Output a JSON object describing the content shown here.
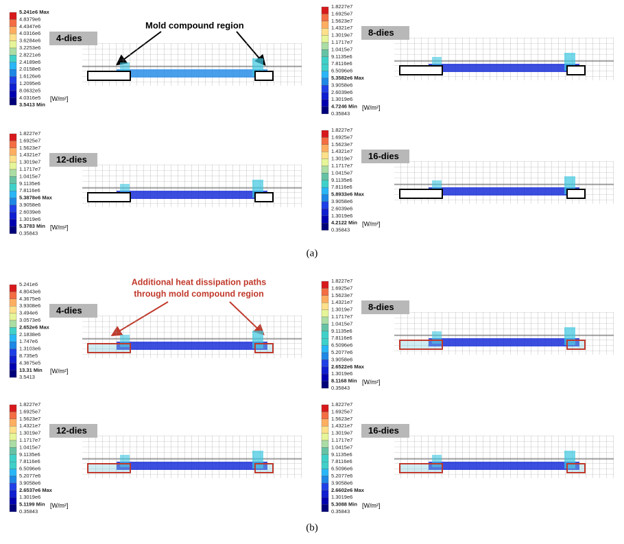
{
  "annotations": {
    "mold_region": "Mold compound region",
    "heat_paths_line1": "Additional heat dissipation paths",
    "heat_paths_line2": "through mold compound region"
  },
  "captions": [
    "(a)",
    "(b)"
  ],
  "panels": [
    {
      "title": "4-dies",
      "unit": "[W/m²]",
      "scale": [
        {
          "text": "5.241e6 Max",
          "bold": true
        },
        {
          "text": "4.8379e6"
        },
        {
          "text": "4.4347e6"
        },
        {
          "text": "4.0316e6"
        },
        {
          "text": "3.6284e6"
        },
        {
          "text": "3.2253e6"
        },
        {
          "text": "2.8221e6"
        },
        {
          "text": "2.4189e6"
        },
        {
          "text": "2.0158e6"
        },
        {
          "text": "1.6126e6"
        },
        {
          "text": "1.2095e6"
        },
        {
          "text": "8.0632e5"
        },
        {
          "text": "4.0316e5"
        },
        {
          "text": "3.5413 Min",
          "bold": true
        }
      ]
    },
    {
      "title": "8-dies",
      "unit": "[W/m²]",
      "scale": [
        {
          "text": "1.8227e7"
        },
        {
          "text": "1.6925e7"
        },
        {
          "text": "1.5623e7"
        },
        {
          "text": "1.4321e7"
        },
        {
          "text": "1.3019e7"
        },
        {
          "text": "1.1717e7"
        },
        {
          "text": "1.0415e7"
        },
        {
          "text": "9.1135e6"
        },
        {
          "text": "7.8116e6"
        },
        {
          "text": "6.5096e6"
        },
        {
          "text": "5.3582e6 Max",
          "bold": true
        },
        {
          "text": "3.9058e6"
        },
        {
          "text": "2.6039e6"
        },
        {
          "text": "1.3019e6"
        },
        {
          "text": "4.7246 Min",
          "bold": true
        },
        {
          "text": "0.35843"
        }
      ]
    },
    {
      "title": "12-dies",
      "unit": "[W/m²]",
      "scale": [
        {
          "text": "1.8227e7"
        },
        {
          "text": "1.6925e7"
        },
        {
          "text": "1.5623e7"
        },
        {
          "text": "1.4321e7"
        },
        {
          "text": "1.3019e7"
        },
        {
          "text": "1.1717e7"
        },
        {
          "text": "1.0415e7"
        },
        {
          "text": "9.1135e6"
        },
        {
          "text": "7.8116e6"
        },
        {
          "text": "5.3878e6 Max",
          "bold": true
        },
        {
          "text": "3.9058e6"
        },
        {
          "text": "2.6039e6"
        },
        {
          "text": "1.3019e6"
        },
        {
          "text": "5.3783 Min",
          "bold": true
        },
        {
          "text": "0.35843"
        }
      ]
    },
    {
      "title": "16-dies",
      "unit": "[W/m²]",
      "scale": [
        {
          "text": "1.8227e7"
        },
        {
          "text": "1.6925e7"
        },
        {
          "text": "1.5623e7"
        },
        {
          "text": "1.4321e7"
        },
        {
          "text": "1.3019e7"
        },
        {
          "text": "1.1717e7"
        },
        {
          "text": "1.0415e7"
        },
        {
          "text": "9.1135e6"
        },
        {
          "text": "7.8116e6"
        },
        {
          "text": "5.8933e6 Max",
          "bold": true
        },
        {
          "text": "3.9058e6"
        },
        {
          "text": "2.6039e6"
        },
        {
          "text": "1.3019e6"
        },
        {
          "text": "4.2122 Min",
          "bold": true
        },
        {
          "text": "0.35843"
        }
      ]
    },
    {
      "title": "4-dies",
      "unit": "[W/m²]",
      "scale": [
        {
          "text": "5.241e6"
        },
        {
          "text": "4.8043e6"
        },
        {
          "text": "4.3675e6"
        },
        {
          "text": "3.9308e6"
        },
        {
          "text": "3.494e6"
        },
        {
          "text": "3.0573e6"
        },
        {
          "text": "2.652e6 Max",
          "bold": true
        },
        {
          "text": "2.1838e6"
        },
        {
          "text": "1.747e6"
        },
        {
          "text": "1.3103e6"
        },
        {
          "text": "8.735e5"
        },
        {
          "text": "4.3675e5"
        },
        {
          "text": "13.31 Min",
          "bold": true
        },
        {
          "text": "3.5413"
        }
      ]
    },
    {
      "title": "8-dies",
      "unit": "[W/m²]",
      "scale": [
        {
          "text": "1.8227e7"
        },
        {
          "text": "1.6925e7"
        },
        {
          "text": "1.5623e7"
        },
        {
          "text": "1.4321e7"
        },
        {
          "text": "1.3019e7"
        },
        {
          "text": "1.1717e7"
        },
        {
          "text": "1.0415e7"
        },
        {
          "text": "9.1135e6"
        },
        {
          "text": "7.8116e6"
        },
        {
          "text": "6.5096e6"
        },
        {
          "text": "5.2077e6"
        },
        {
          "text": "3.9058e6"
        },
        {
          "text": "2.6522e6 Max",
          "bold": true
        },
        {
          "text": "1.3019e6"
        },
        {
          "text": "8.1168 Min",
          "bold": true
        },
        {
          "text": "0.35843"
        }
      ]
    },
    {
      "title": "12-dies",
      "unit": "[W/m²]",
      "scale": [
        {
          "text": "1.8227e7"
        },
        {
          "text": "1.6925e7"
        },
        {
          "text": "1.5623e7"
        },
        {
          "text": "1.4321e7"
        },
        {
          "text": "1.3019e7"
        },
        {
          "text": "1.1717e7"
        },
        {
          "text": "1.0415e7"
        },
        {
          "text": "9.1135e6"
        },
        {
          "text": "7.8116e6"
        },
        {
          "text": "6.5096e6"
        },
        {
          "text": "5.2077e6"
        },
        {
          "text": "3.9058e6"
        },
        {
          "text": "2.6537e6 Max",
          "bold": true
        },
        {
          "text": "1.3019e6"
        },
        {
          "text": "5.1199 Min",
          "bold": true
        },
        {
          "text": "0.35843"
        }
      ]
    },
    {
      "title": "16-dies",
      "unit": "[W/m²]",
      "scale": [
        {
          "text": "1.8227e7"
        },
        {
          "text": "1.6925e7"
        },
        {
          "text": "1.5623e7"
        },
        {
          "text": "1.4321e7"
        },
        {
          "text": "1.3019e7"
        },
        {
          "text": "1.1717e7"
        },
        {
          "text": "1.0415e7"
        },
        {
          "text": "9.1135e6"
        },
        {
          "text": "7.8116e6"
        },
        {
          "text": "6.5096e6"
        },
        {
          "text": "5.2077e6"
        },
        {
          "text": "3.9058e6"
        },
        {
          "text": "2.6602e6 Max",
          "bold": true
        },
        {
          "text": "1.3019e6"
        },
        {
          "text": "5.3088 Min",
          "bold": true
        },
        {
          "text": "0.35843"
        }
      ]
    }
  ]
}
